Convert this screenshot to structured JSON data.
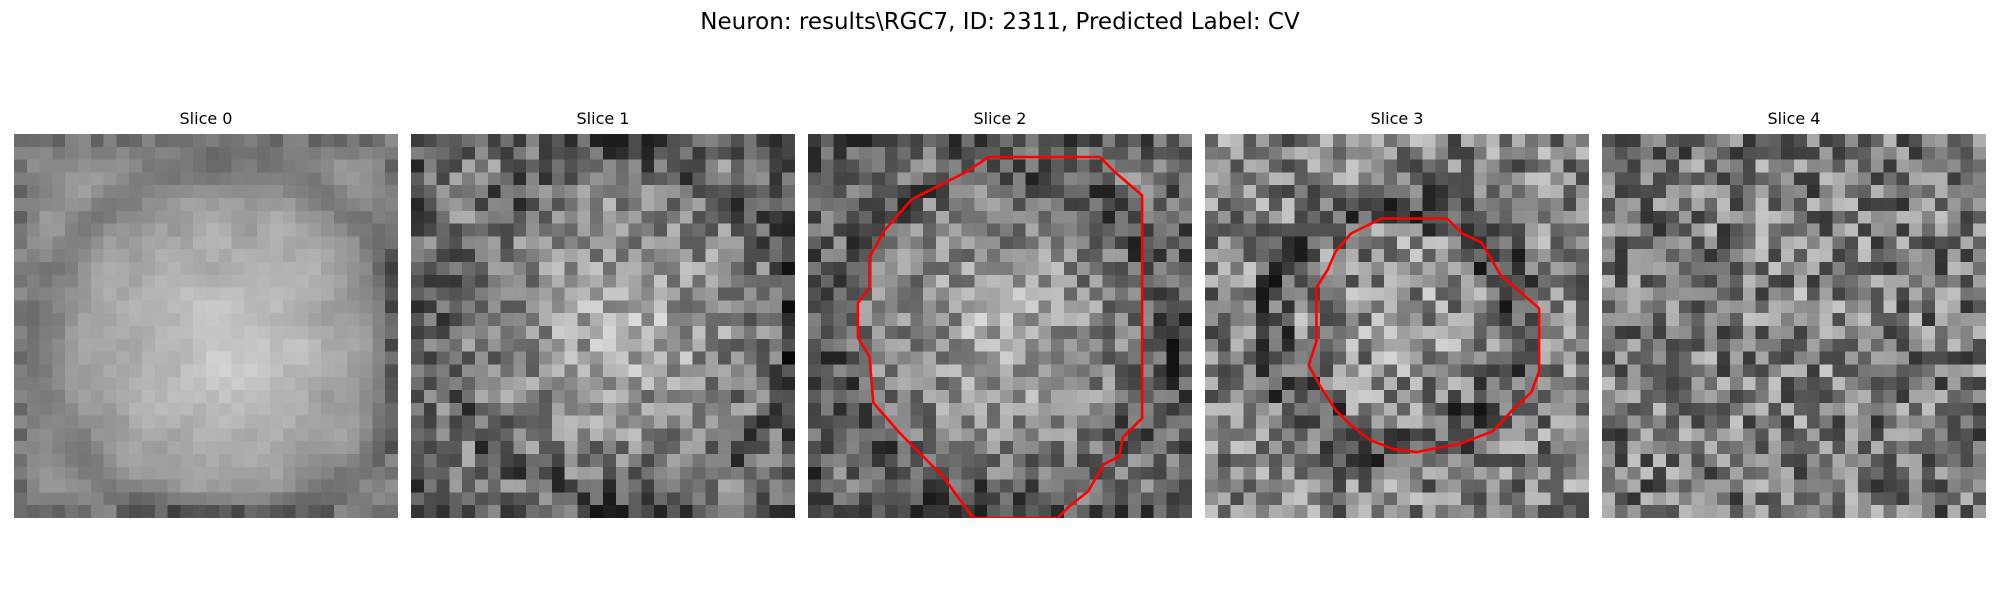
{
  "figure": {
    "title": "Neuron: results\\RGC7, ID: 2311, Predicted Label: CV",
    "colors": {
      "contour": "#ff0000",
      "background": "#ffffff"
    },
    "image_style": "grayscale pixelated 30x30 microscopy slice",
    "slices": [
      {
        "title": "Slice 0",
        "has_contour": false
      },
      {
        "title": "Slice 1",
        "has_contour": false
      },
      {
        "title": "Slice 2",
        "has_contour": true
      },
      {
        "title": "Slice 3",
        "has_contour": true
      },
      {
        "title": "Slice 4",
        "has_contour": false
      }
    ]
  }
}
